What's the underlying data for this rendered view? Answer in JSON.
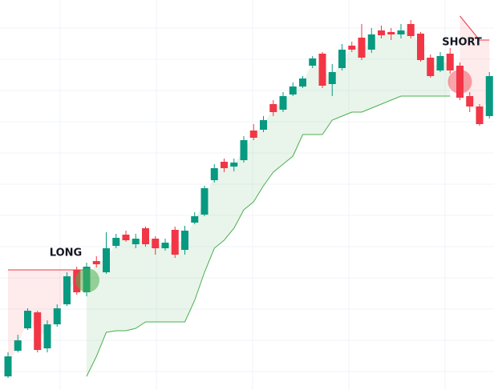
{
  "chart_data": {
    "type": "candlestick",
    "open": [
      17,
      49,
      77,
      97,
      52,
      82,
      107,
      150,
      122,
      161,
      147,
      180,
      194,
      182,
      202,
      189,
      177,
      200,
      175,
      209,
      219,
      262,
      285,
      279,
      287,
      324,
      325,
      357,
      350,
      369,
      379,
      405,
      420,
      382,
      402,
      430,
      440,
      425,
      449,
      447,
      444,
      457,
      445,
      415,
      399,
      420,
      405,
      367,
      354,
      342
    ],
    "high": [
      47,
      69,
      102,
      99,
      87,
      107,
      147,
      154,
      159,
      167,
      197,
      195,
      199,
      195,
      204,
      192,
      189,
      204,
      205,
      222,
      255,
      282,
      289,
      289,
      317,
      332,
      342,
      362,
      372,
      384,
      392,
      417,
      422,
      407,
      432,
      435,
      457,
      452,
      455,
      452,
      457,
      462,
      447,
      419,
      422,
      427,
      409,
      372,
      357,
      397
    ],
    "low": [
      15,
      47,
      75,
      47,
      47,
      79,
      105,
      119,
      117,
      153,
      145,
      177,
      185,
      177,
      179,
      169,
      174,
      165,
      169,
      207,
      217,
      259,
      272,
      273,
      284,
      312,
      322,
      342,
      347,
      367,
      377,
      402,
      377,
      367,
      399,
      422,
      412,
      421,
      439,
      437,
      439,
      439,
      410,
      390,
      397,
      395,
      362,
      347,
      330,
      339
    ],
    "close": [
      42,
      62,
      99,
      50,
      82,
      102,
      142,
      122,
      154,
      157,
      177,
      190,
      187,
      189,
      182,
      177,
      184,
      169,
      199,
      217,
      252,
      277,
      277,
      284,
      312,
      315,
      337,
      347,
      367,
      379,
      389,
      414,
      380,
      397,
      425,
      425,
      415,
      444,
      443,
      444,
      449,
      442,
      412,
      392,
      417,
      399,
      365,
      354,
      332,
      392
    ],
    "up_color": "#089981",
    "down_color": "#f23645",
    "ylim": [
      0,
      487
    ],
    "supertrend": [
      {
        "color": "#4caf50",
        "fill": "rgba(76,175,80,0.12)",
        "values": [
          null,
          null,
          null,
          null,
          null,
          null,
          null,
          null,
          17,
          42,
          72,
          74,
          74,
          77,
          85,
          85,
          85,
          85,
          85,
          112,
          147,
          177,
          187,
          202,
          225,
          235,
          255,
          272,
          282,
          292,
          319,
          319,
          319,
          337,
          342,
          347,
          347,
          352,
          357,
          362,
          367,
          367,
          367,
          367,
          367,
          367,
          null,
          null,
          null,
          null
        ]
      },
      {
        "color": "#f23645",
        "fill": "rgba(242,54,69,0.10)",
        "values": [
          150,
          150,
          150,
          150,
          150,
          150,
          150,
          150,
          150,
          null,
          null,
          null,
          null,
          null,
          null,
          null,
          null,
          null,
          null,
          null,
          null,
          null,
          null,
          null,
          null,
          null,
          null,
          null,
          null,
          null,
          null,
          null,
          null,
          null,
          null,
          null,
          null,
          null,
          null,
          null,
          null,
          null,
          null,
          null,
          null,
          null,
          467,
          452,
          437,
          437
        ]
      }
    ],
    "annotations": [
      {
        "text": "LONG",
        "color": "rgba(76,175,80,0.55)"
      },
      {
        "text": "SHORT",
        "color": "rgba(242,54,69,0.45)"
      }
    ]
  }
}
